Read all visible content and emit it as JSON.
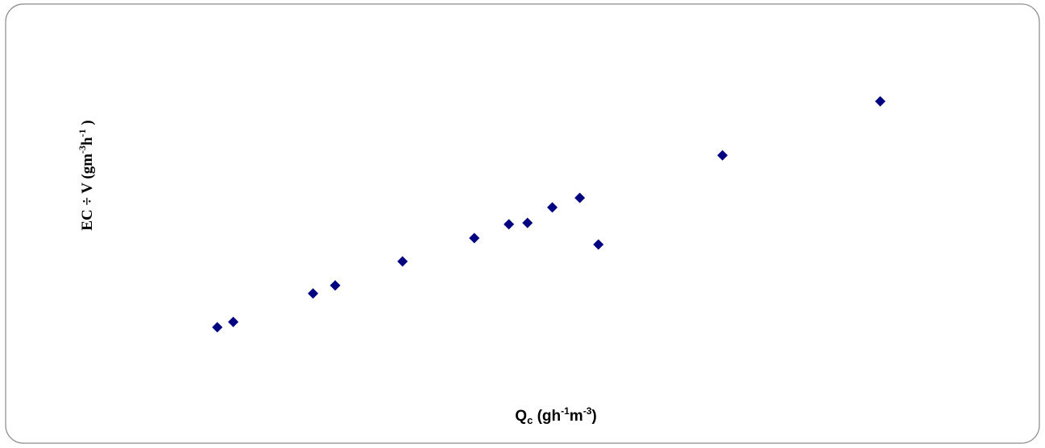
{
  "chart_data": {
    "type": "scatter",
    "x_label_parts": [
      "Q",
      "c",
      " (gh",
      "-1",
      "m",
      "-3",
      ")"
    ],
    "y_label_parts": [
      "EC ÷ V (gm",
      "-3",
      "h",
      "-1",
      " )"
    ],
    "x": [
      12.7,
      14.5,
      23.5,
      26.0,
      33.6,
      41.7,
      45.6,
      47.7,
      50.5,
      53.6,
      55.7,
      69.7,
      87.5
    ],
    "values": [
      17.4,
      19.0,
      27.4,
      29.8,
      36.9,
      43.8,
      47.9,
      48.3,
      52.9,
      55.7,
      41.9,
      68.3,
      84.3
    ],
    "color": "#000080",
    "xlim": [
      0,
      100
    ],
    "ylim": [
      0,
      100
    ]
  }
}
